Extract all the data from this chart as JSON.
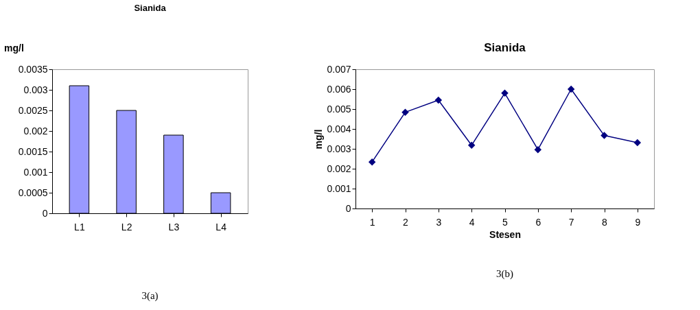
{
  "chart_data": [
    {
      "type": "bar",
      "title": "Sianida",
      "ylabel": "mg/l",
      "categories": [
        "L1",
        "L2",
        "L3",
        "L4"
      ],
      "values": [
        0.0031,
        0.0025,
        0.0019,
        0.0005
      ],
      "color": "#9999ff",
      "ylim": [
        0,
        0.0035
      ],
      "yticks": [
        0,
        0.0005,
        0.001,
        0.0015,
        0.002,
        0.0025,
        0.003,
        0.0035
      ],
      "grid": false,
      "annotations": [
        "3(a)"
      ]
    },
    {
      "type": "line",
      "title": "Sianida",
      "xlabel": "Stesen",
      "ylabel": "mg/l",
      "categories": [
        "1",
        "2",
        "3",
        "4",
        "5",
        "6",
        "7",
        "8",
        "9"
      ],
      "values": [
        0.00234,
        0.00484,
        0.00545,
        0.00318,
        0.0058,
        0.00296,
        0.006,
        0.00367,
        0.00331
      ],
      "color": "#000080",
      "marker": "diamond",
      "line_style": "solid",
      "ylim": [
        0,
        0.007
      ],
      "yticks": [
        0,
        0.001,
        0.002,
        0.003,
        0.004,
        0.005,
        0.006,
        0.007
      ],
      "grid": false,
      "annotations": [
        "3(b)"
      ]
    }
  ]
}
